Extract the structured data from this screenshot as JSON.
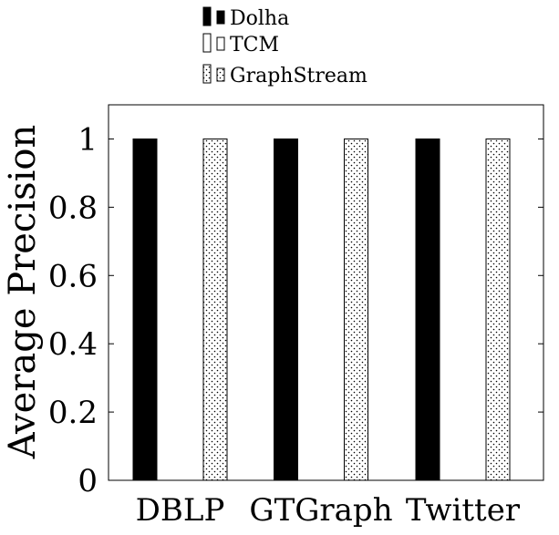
{
  "chart_data": {
    "type": "bar",
    "title": "",
    "xlabel": "",
    "ylabel": "Average Precision",
    "categories": [
      "DBLP",
      "GTGraph",
      "Twitter"
    ],
    "ylim": [
      0,
      1.1
    ],
    "yticks": [
      0,
      0.2,
      0.4,
      0.6,
      0.8,
      1
    ],
    "ytick_labels": [
      "0",
      "0.2",
      "0.4",
      "0.6",
      "0.8",
      "1"
    ],
    "grid": false,
    "legend_position": "top-center",
    "series": [
      {
        "name": "Dolha",
        "values": [
          1,
          1,
          1
        ],
        "fill": "solid",
        "color": "#000000"
      },
      {
        "name": "TCM",
        "values": [
          0,
          0,
          0
        ],
        "fill": "hollow",
        "color": "#000000"
      },
      {
        "name": "GraphStream",
        "values": [
          1,
          1,
          1
        ],
        "fill": "dots",
        "color": "#000000"
      }
    ]
  }
}
